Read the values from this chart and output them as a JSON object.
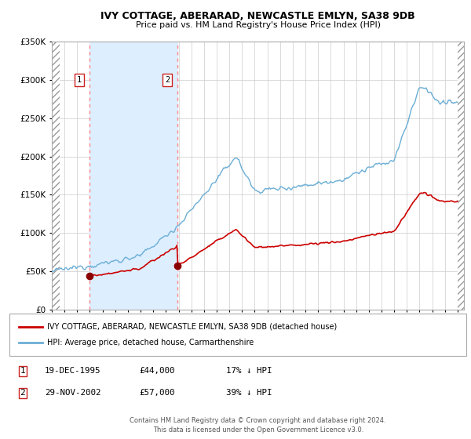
{
  "title": "IVY COTTAGE, ABERARAD, NEWCASTLE EMLYN, SA38 9DB",
  "subtitle": "Price paid vs. HM Land Registry's House Price Index (HPI)",
  "legend_line1": "IVY COTTAGE, ABERARAD, NEWCASTLE EMLYN, SA38 9DB (detached house)",
  "legend_line2": "HPI: Average price, detached house, Carmarthenshire",
  "footer": "Contains HM Land Registry data © Crown copyright and database right 2024.\nThis data is licensed under the Open Government Licence v3.0.",
  "sale1_date": "19-DEC-1995",
  "sale1_price": 44000,
  "sale1_pct": "17% ↓ HPI",
  "sale2_date": "29-NOV-2002",
  "sale2_price": 57000,
  "sale2_pct": "39% ↓ HPI",
  "ylim": [
    0,
    350000
  ],
  "xlim_left": 1993.0,
  "xlim_right": 2025.5,
  "hpi_color": "#6baed6",
  "price_color": "#cc0000",
  "dot_color": "#8B0000",
  "vline_color": "#ff8888",
  "shade_color": "#ddeeff",
  "grid_color": "#cccccc",
  "bg_color": "#ffffff",
  "sale1_x": 1995.96,
  "sale2_x": 2002.91
}
